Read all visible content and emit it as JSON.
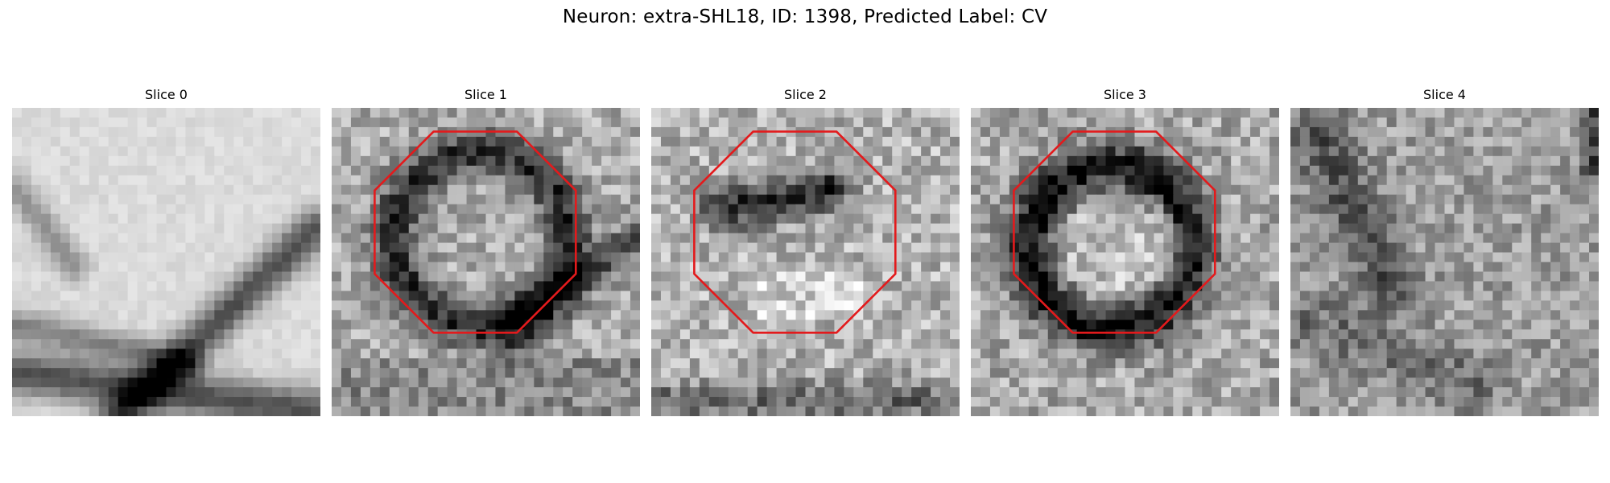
{
  "figure": {
    "title": "Neuron: extra-SHL18, ID: 1398, Predicted Label: CV"
  },
  "panels": [
    {
      "title": "Slice 0",
      "has_outline": false
    },
    {
      "title": "Slice 1",
      "has_outline": true
    },
    {
      "title": "Slice 2",
      "has_outline": true
    },
    {
      "title": "Slice 3",
      "has_outline": true
    },
    {
      "title": "Slice 4",
      "has_outline": false
    }
  ],
  "style": {
    "outline_color": "#e31a1c",
    "colormap": "grayscale"
  }
}
